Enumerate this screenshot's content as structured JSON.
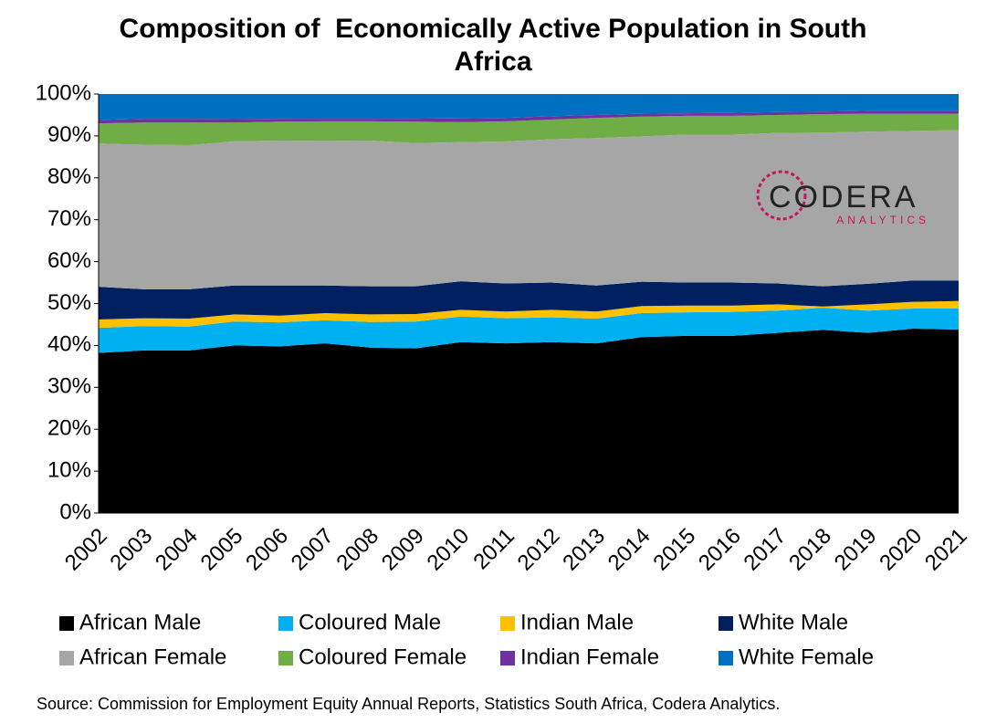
{
  "chart_data": {
    "type": "stacked_area",
    "title": "Composition of  Economically Active Population in South Africa",
    "source": "Source: Commission for Employment Equity Annual Reports, Statistics South Africa, Codera Analytics.",
    "logo": {
      "name": "CODERA",
      "tagline": "ANALYTICS"
    },
    "categories": [
      "2002",
      "2003",
      "2004",
      "2005",
      "2006",
      "2007",
      "2008",
      "2009",
      "2010",
      "2011",
      "2012",
      "2013",
      "2014",
      "2015",
      "2016",
      "2017",
      "2018",
      "2019",
      "2020",
      "2021"
    ],
    "series": [
      {
        "name": "African Male",
        "color": "#000000",
        "values": [
          38.2,
          38.8,
          38.8,
          40.0,
          39.8,
          40.5,
          39.5,
          39.3,
          40.8,
          40.5,
          40.8,
          40.5,
          42.0,
          42.3,
          42.3,
          43.0,
          43.7,
          43.0,
          44.0,
          43.8
        ]
      },
      {
        "name": "Coloured Male",
        "color": "#00b0f0",
        "values": [
          6.0,
          5.8,
          5.7,
          5.7,
          5.7,
          5.5,
          6.1,
          6.4,
          6.1,
          6.0,
          5.9,
          5.9,
          5.7,
          5.6,
          5.7,
          5.3,
          5.3,
          5.3,
          4.8,
          5.0
        ]
      },
      {
        "name": "Indian Male",
        "color": "#ffc000",
        "values": [
          2.0,
          1.9,
          1.9,
          1.7,
          1.6,
          1.7,
          1.8,
          1.8,
          1.6,
          1.6,
          1.8,
          1.7,
          1.7,
          1.6,
          1.5,
          1.5,
          0.3,
          1.5,
          1.6,
          1.8
        ]
      },
      {
        "name": "White Male",
        "color": "#002060",
        "values": [
          7.8,
          6.9,
          7.0,
          6.9,
          7.2,
          6.6,
          6.7,
          6.6,
          6.8,
          6.7,
          6.5,
          6.2,
          5.8,
          5.5,
          5.5,
          5.0,
          4.8,
          4.9,
          5.1,
          4.9
        ]
      },
      {
        "name": "African Female",
        "color": "#a6a6a6",
        "values": [
          34.2,
          34.5,
          34.4,
          34.4,
          34.6,
          34.5,
          34.8,
          34.2,
          33.2,
          33.9,
          34.2,
          35.2,
          34.7,
          35.3,
          35.3,
          35.9,
          36.7,
          36.3,
          35.7,
          35.9
        ]
      },
      {
        "name": "Coloured Female",
        "color": "#70ad47",
        "values": [
          4.8,
          5.3,
          5.4,
          4.5,
          4.5,
          4.7,
          4.6,
          5.1,
          4.8,
          4.8,
          4.7,
          4.8,
          4.7,
          4.5,
          4.5,
          4.3,
          4.4,
          4.3,
          4.1,
          3.9
        ]
      },
      {
        "name": "Indian Female",
        "color": "#7030a0",
        "values": [
          0.8,
          0.9,
          0.9,
          0.8,
          0.7,
          0.6,
          0.6,
          0.7,
          0.9,
          0.8,
          0.8,
          0.7,
          0.7,
          0.6,
          0.7,
          0.7,
          0.6,
          0.7,
          0.7,
          0.7
        ]
      },
      {
        "name": "White Female",
        "color": "#0070c0",
        "values": [
          6.2,
          5.9,
          5.9,
          6.0,
          5.9,
          5.9,
          5.9,
          5.9,
          5.8,
          5.7,
          5.3,
          5.0,
          4.7,
          4.6,
          4.5,
          4.3,
          4.2,
          4.0,
          4.0,
          4.0
        ]
      }
    ],
    "ylim": [
      0,
      100
    ],
    "yticks": [
      {
        "value": 0,
        "label": "0%"
      },
      {
        "value": 10,
        "label": "10%"
      },
      {
        "value": 20,
        "label": "20%"
      },
      {
        "value": 30,
        "label": "30%"
      },
      {
        "value": 40,
        "label": "40%"
      },
      {
        "value": 50,
        "label": "50%"
      },
      {
        "value": 60,
        "label": "60%"
      },
      {
        "value": 70,
        "label": "70%"
      },
      {
        "value": 80,
        "label": "80%"
      },
      {
        "value": 90,
        "label": "90%"
      },
      {
        "value": 100,
        "label": "100%"
      }
    ],
    "legend": "bottom"
  }
}
